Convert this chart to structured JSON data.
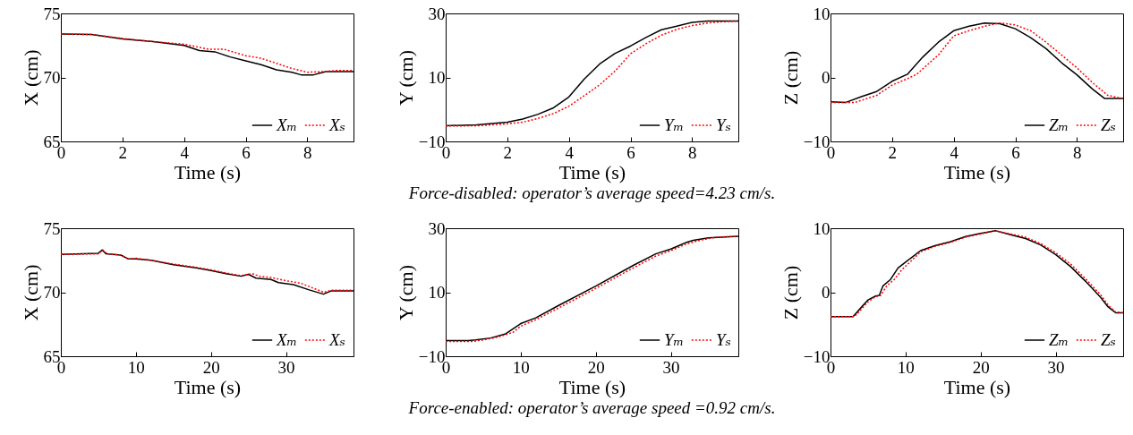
{
  "chart_data": [
    {
      "type": "line",
      "xlabel": "Time (s)",
      "ylabel": "X (cm)",
      "xlim": [
        0,
        9.5
      ],
      "xticks": [
        0,
        2,
        4,
        6,
        8
      ],
      "ylim": [
        65,
        75
      ],
      "yticks": [
        65,
        70,
        75
      ],
      "legend": "bottom right",
      "series": [
        {
          "name": "Xₘ",
          "color": "#000000",
          "line_style": "solid",
          "x": [
            0,
            1,
            2,
            3,
            4,
            4.5,
            5,
            5.5,
            6,
            6.5,
            7,
            7.5,
            7.8,
            8.2,
            8.6,
            9.5
          ],
          "values": [
            73.4,
            73.35,
            73.0,
            72.8,
            72.5,
            72.1,
            72.0,
            71.6,
            71.3,
            71.0,
            70.6,
            70.4,
            70.2,
            70.2,
            70.45,
            70.45
          ]
        },
        {
          "name": "Xₛ",
          "color": "#ff0000",
          "line_style": "dotted",
          "x": [
            0,
            1,
            2,
            3,
            4,
            4.8,
            5.3,
            6,
            6.5,
            7,
            7.5,
            8,
            8.5,
            9,
            9.5
          ],
          "values": [
            73.4,
            73.35,
            73.05,
            72.8,
            72.6,
            72.2,
            72.2,
            71.7,
            71.5,
            71.1,
            70.7,
            70.4,
            70.45,
            70.55,
            70.55
          ]
        }
      ]
    },
    {
      "type": "line",
      "xlabel": "Time (s)",
      "ylabel": "Y (cm)",
      "xlim": [
        0,
        9.5
      ],
      "xticks": [
        0,
        2,
        4,
        6,
        8
      ],
      "ylim": [
        -10,
        30
      ],
      "yticks": [
        -10,
        10,
        30
      ],
      "legend": "bottom right",
      "annotations": [
        "Force-disabled: operator’s average speed=4.23 cm/s."
      ],
      "series": [
        {
          "name": "Yₘ",
          "color": "#000000",
          "line_style": "solid",
          "x": [
            0,
            1,
            2,
            2.5,
            3,
            3.5,
            4,
            4.5,
            5,
            5.5,
            6,
            6.5,
            7,
            7.5,
            8,
            8.5,
            9.5
          ],
          "values": [
            -5.1,
            -4.8,
            -4.0,
            -3.0,
            -1.5,
            0.5,
            3.9,
            9.5,
            14.2,
            17.5,
            19.8,
            22.5,
            24.9,
            26.0,
            27.2,
            27.6,
            27.6
          ]
        },
        {
          "name": "Yₛ",
          "color": "#ff0000",
          "line_style": "dotted",
          "x": [
            0,
            1,
            2,
            2.5,
            3,
            3.5,
            4,
            4.5,
            5,
            5.5,
            6,
            6.5,
            7,
            7.5,
            8,
            8.5,
            9,
            9.5
          ],
          "values": [
            -5.2,
            -5.1,
            -4.5,
            -4.0,
            -2.8,
            -1.3,
            1.0,
            4.3,
            7.7,
            12.0,
            17.4,
            20.5,
            23.2,
            25.0,
            26.2,
            27.0,
            27.4,
            27.6
          ]
        }
      ]
    },
    {
      "type": "line",
      "xlabel": "Time (s)",
      "ylabel": "Z (cm)",
      "xlim": [
        0,
        9.5
      ],
      "xticks": [
        0,
        2,
        4,
        6,
        8
      ],
      "ylim": [
        -10,
        10
      ],
      "yticks": [
        -10,
        0,
        10
      ],
      "legend": "bottom right",
      "series": [
        {
          "name": "Zₘ",
          "color": "#000000",
          "line_style": "solid",
          "x": [
            0,
            0.5,
            1,
            1.5,
            2,
            2.5,
            3,
            3.5,
            4,
            4.5,
            5,
            5.5,
            6,
            6.5,
            7,
            7.5,
            8,
            8.5,
            8.9,
            9.5
          ],
          "values": [
            -3.8,
            -3.9,
            -3.0,
            -2.2,
            -0.6,
            0.5,
            3.2,
            5.5,
            7.3,
            8.0,
            8.5,
            8.4,
            7.6,
            6.2,
            4.5,
            2.3,
            0.4,
            -1.8,
            -3.3,
            -3.3
          ]
        },
        {
          "name": "Zₛ",
          "color": "#ff0000",
          "line_style": "dotted",
          "x": [
            0,
            0.8,
            1.5,
            2,
            2.5,
            2.8,
            3.5,
            4,
            4.5,
            5,
            5.5,
            6,
            6.5,
            7,
            7.5,
            8,
            8.5,
            9,
            9.5
          ],
          "values": [
            -3.9,
            -3.9,
            -2.8,
            -1.2,
            -0.2,
            0.5,
            3.5,
            6.5,
            7.3,
            8.0,
            8.5,
            8.2,
            7.3,
            5.5,
            3.5,
            1.5,
            -0.8,
            -2.8,
            -3.3
          ]
        }
      ]
    },
    {
      "type": "line",
      "xlabel": "Time (s)",
      "ylabel": "X (cm)",
      "xlim": [
        0,
        39
      ],
      "xticks": [
        0,
        10,
        20,
        30
      ],
      "ylim": [
        65,
        75
      ],
      "yticks": [
        65,
        70,
        75
      ],
      "legend": "bottom right",
      "series": [
        {
          "name": "Xₘ",
          "color": "#000000",
          "line_style": "solid",
          "x": [
            0,
            3,
            5,
            5.5,
            6,
            8,
            9,
            10,
            12,
            15,
            18,
            20,
            22,
            24,
            25,
            26,
            28,
            29,
            31,
            33,
            35,
            36,
            39
          ],
          "values": [
            72.95,
            73.0,
            73.05,
            73.3,
            73.0,
            72.9,
            72.6,
            72.6,
            72.5,
            72.15,
            71.9,
            71.7,
            71.45,
            71.25,
            71.4,
            71.1,
            71.0,
            70.75,
            70.6,
            70.2,
            69.85,
            70.1,
            70.1
          ]
        },
        {
          "name": "Xₛ",
          "color": "#ff0000",
          "line_style": "dotted",
          "x": [
            0,
            5,
            5.6,
            6.2,
            8,
            9,
            10,
            12,
            15,
            18,
            20,
            22,
            24,
            25.5,
            26.5,
            28,
            30,
            32,
            35,
            36,
            39
          ],
          "values": [
            72.95,
            73.0,
            73.3,
            73.0,
            72.9,
            72.6,
            72.65,
            72.5,
            72.2,
            71.95,
            71.75,
            71.5,
            71.3,
            71.45,
            71.25,
            71.15,
            70.9,
            70.7,
            70.0,
            70.15,
            70.15
          ]
        }
      ]
    },
    {
      "type": "line",
      "xlabel": "Time (s)",
      "ylabel": "Y (cm)",
      "xlim": [
        0,
        39
      ],
      "xticks": [
        0,
        10,
        20,
        30
      ],
      "ylim": [
        -10,
        30
      ],
      "yticks": [
        -10,
        10,
        30
      ],
      "legend": "bottom right",
      "annotations": [
        "Force-enabled: operator’s average speed =0.92 cm/s."
      ],
      "series": [
        {
          "name": "Yₘ",
          "color": "#000000",
          "line_style": "solid",
          "x": [
            0,
            3,
            4,
            6,
            8,
            10,
            12,
            15,
            20,
            25,
            28,
            30,
            32,
            33,
            35,
            39
          ],
          "values": [
            -5.1,
            -5.1,
            -4.9,
            -4.3,
            -3.0,
            0.2,
            2.0,
            5.8,
            11.9,
            18.4,
            22.0,
            23.5,
            25.5,
            26.2,
            27.0,
            27.5
          ]
        },
        {
          "name": "Yₛ",
          "color": "#ff0000",
          "line_style": "dotted",
          "x": [
            0,
            3.5,
            5,
            7,
            9,
            10,
            12,
            15,
            20,
            25,
            28,
            30,
            32,
            34,
            36,
            39
          ],
          "values": [
            -5.4,
            -5.4,
            -4.9,
            -4.0,
            -2.5,
            -0.6,
            1.4,
            5.0,
            11.2,
            17.6,
            21.3,
            23.0,
            25.0,
            26.3,
            27.2,
            27.5
          ]
        }
      ]
    },
    {
      "type": "line",
      "xlabel": "Time (s)",
      "ylabel": "Z (cm)",
      "xlim": [
        0,
        39
      ],
      "xticks": [
        0,
        10,
        20,
        30
      ],
      "ylim": [
        -10,
        10
      ],
      "yticks": [
        -10,
        0,
        10
      ],
      "legend": "bottom right",
      "series": [
        {
          "name": "Zₘ",
          "color": "#000000",
          "line_style": "solid",
          "x": [
            0,
            3,
            4,
            5,
            6,
            6.5,
            7,
            8,
            9,
            10,
            12,
            14,
            16,
            18,
            20,
            22,
            24,
            26,
            28,
            30,
            32,
            34,
            36,
            37,
            38,
            39
          ],
          "values": [
            -3.8,
            -3.8,
            -2.5,
            -1.2,
            -0.6,
            -0.5,
            1.0,
            2.0,
            3.8,
            4.7,
            6.5,
            7.3,
            7.9,
            8.7,
            9.2,
            9.6,
            9.0,
            8.4,
            7.4,
            5.9,
            4.0,
            1.7,
            -0.8,
            -2.3,
            -3.2,
            -3.2
          ]
        },
        {
          "name": "Zₛ",
          "color": "#ff0000",
          "line_style": "dotted",
          "x": [
            0,
            3.2,
            4,
            5,
            6,
            6.7,
            7.5,
            8.5,
            9.5,
            10.5,
            12,
            14,
            16,
            18,
            20,
            22,
            24,
            26,
            28,
            30,
            32,
            34,
            36,
            37,
            38,
            39
          ],
          "values": [
            -3.8,
            -3.8,
            -2.8,
            -1.5,
            -0.7,
            -0.5,
            1.0,
            2.0,
            3.5,
            4.6,
            6.3,
            7.2,
            7.8,
            8.6,
            9.1,
            9.6,
            9.1,
            8.6,
            7.6,
            6.2,
            4.4,
            2.1,
            -0.4,
            -2.0,
            -3.1,
            -3.2
          ]
        }
      ]
    }
  ]
}
